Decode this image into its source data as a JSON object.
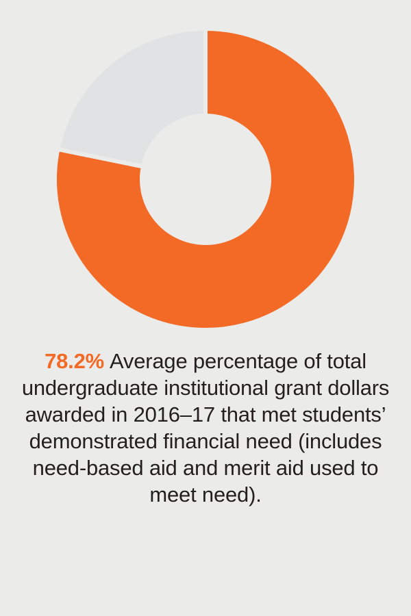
{
  "chart_data": {
    "type": "donut",
    "values": [
      78.2,
      21.8
    ],
    "value_labels": [
      "78.2%",
      null
    ],
    "colors": [
      "#f26a25",
      "#e1e2e4"
    ],
    "caption": "Average percentage of total undergraduate institutional grant dollars awarded in 2016–17 that met students’ demonstrated financial need (includes need-based aid and merit aid used to meet need)."
  }
}
